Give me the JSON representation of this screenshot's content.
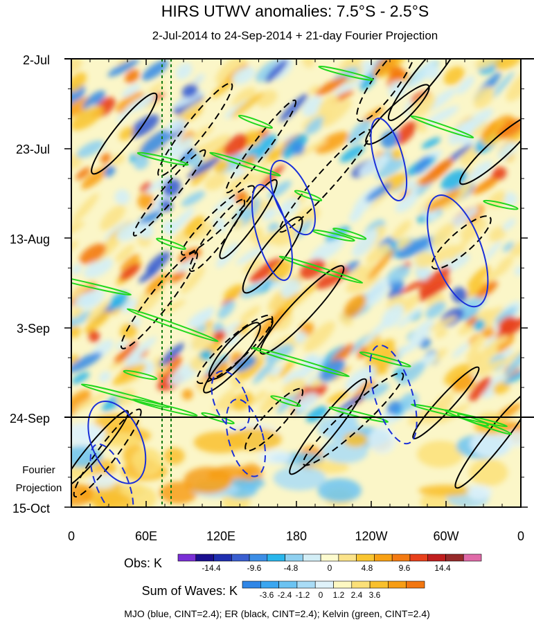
{
  "chart_data": {
    "type": "heatmap",
    "title": "HIRS UTWV anomalies: 7.5°S - 2.5°S",
    "subtitle": "2-Jul-2014 to 24-Sep-2014 + 21-day Fourier Projection",
    "xlabel": "",
    "ylabel": "",
    "x_tick_labels": [
      "0",
      "60E",
      "120E",
      "180",
      "120W",
      "60W",
      "0"
    ],
    "x_ticks_deg": [
      0,
      60,
      120,
      180,
      240,
      300,
      360
    ],
    "y_tick_labels": [
      "2-Jul",
      "23-Jul",
      "13-Aug",
      "3-Sep",
      "24-Sep",
      "15-Oct"
    ],
    "y_ticks_day": [
      0,
      21,
      42,
      63,
      84,
      105
    ],
    "projection_label": [
      "Fourier",
      "Projection"
    ],
    "projection_start_day": 84,
    "reference_lines_deg": [
      73,
      80
    ],
    "obs_colorbar": {
      "label": "Obs: K",
      "tick_labels": [
        "-14.4",
        "-9.6",
        "-4.8",
        "0",
        "4.8",
        "9.6",
        "14.4"
      ],
      "colors": [
        "#7a2fd6",
        "#1a0f8f",
        "#1f2fb0",
        "#3a5fd0",
        "#3c8ee6",
        "#29b6ec",
        "#8fd0f0",
        "#d3eef6",
        "#fdfbcf",
        "#fbe38a",
        "#f9c531",
        "#f8a114",
        "#f37a12",
        "#e8401b",
        "#c01e1e",
        "#962a2a",
        "#e06aa8"
      ]
    },
    "waves_colorbar": {
      "label": "Sum of Waves: K",
      "tick_labels": [
        "-3.6",
        "-2.4",
        "-1.2",
        "0",
        "1.2",
        "2.4",
        "3.6"
      ],
      "colors": [
        "#2f86e6",
        "#3aa6f0",
        "#6bc3f2",
        "#a9dcf6",
        "#dff2fa",
        "#fdf8c2",
        "#fbe078",
        "#f9c02d",
        "#f79d14",
        "#f27610"
      ]
    },
    "footer": "MJO (blue, CINT=2.4); ER (black, CINT=2.4); Kelvin (green, CINT=2.4)",
    "contour_colors": {
      "mjo": "#1a2fd8",
      "er": "#000000",
      "kelvin": "#22d81e"
    }
  }
}
